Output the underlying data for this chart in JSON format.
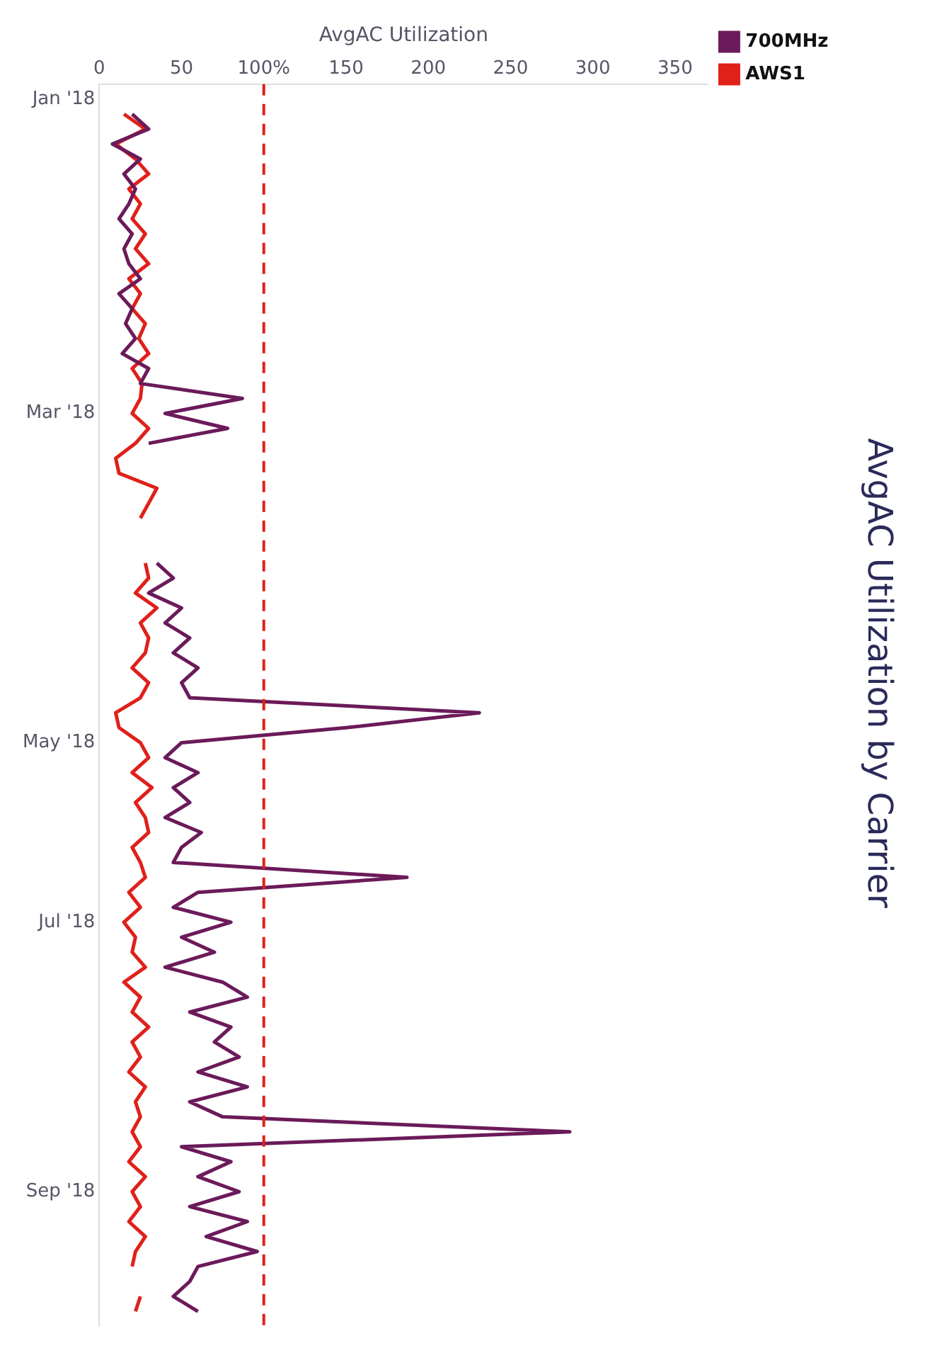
{
  "chart_data": {
    "type": "line",
    "title": "AvgAC Utilization by Carrier",
    "xlabel": "AvgAC Utilization",
    "categories": [
      null,
      "Jan '18",
      null,
      null,
      null,
      null,
      null,
      null,
      null,
      null,
      null,
      null,
      null,
      null,
      null,
      null,
      null,
      null,
      null,
      null,
      null,
      null,
      "Mar '18",
      null,
      null,
      null,
      null,
      null,
      null,
      null,
      null,
      null,
      null,
      null,
      null,
      null,
      null,
      null,
      null,
      null,
      null,
      null,
      null,
      null,
      "May '18",
      null,
      null,
      null,
      null,
      null,
      null,
      null,
      null,
      null,
      null,
      null,
      "Jul '18",
      null,
      null,
      null,
      null,
      null,
      null,
      null,
      null,
      null,
      null,
      null,
      null,
      null,
      null,
      null,
      null,
      null,
      "Sep '18",
      null,
      null,
      null,
      null,
      null,
      null,
      null,
      null,
      null
    ],
    "series": [
      {
        "name": "700MHz",
        "color": "#6b1a5a",
        "values": [
          null,
          null,
          20,
          30,
          8,
          25,
          15,
          22,
          18,
          12,
          20,
          15,
          18,
          25,
          12,
          20,
          16,
          22,
          14,
          30,
          25,
          87,
          40,
          78,
          30,
          null,
          null,
          null,
          null,
          null,
          null,
          null,
          35,
          45,
          30,
          50,
          40,
          55,
          45,
          60,
          50,
          55,
          231,
          150,
          50,
          40,
          60,
          45,
          55,
          40,
          62,
          50,
          45,
          187,
          60,
          45,
          80,
          50,
          70,
          40,
          75,
          90,
          55,
          80,
          70,
          85,
          60,
          90,
          55,
          75,
          286,
          50,
          80,
          60,
          85,
          55,
          90,
          65,
          96,
          60,
          55,
          45,
          60,
          null
        ]
      },
      {
        "name": "AWS1",
        "color": "#e0201a",
        "values": [
          null,
          null,
          15,
          28,
          10,
          22,
          30,
          18,
          25,
          20,
          28,
          22,
          30,
          18,
          25,
          20,
          28,
          24,
          30,
          20,
          26,
          25,
          20,
          30,
          22,
          10,
          12,
          35,
          30,
          25,
          null,
          null,
          28,
          30,
          22,
          35,
          25,
          30,
          28,
          20,
          30,
          25,
          10,
          12,
          25,
          30,
          20,
          32,
          22,
          28,
          30,
          20,
          25,
          28,
          18,
          25,
          15,
          22,
          20,
          28,
          15,
          25,
          20,
          30,
          20,
          25,
          18,
          28,
          22,
          25,
          20,
          25,
          18,
          28,
          20,
          25,
          18,
          28,
          22,
          20,
          null,
          25,
          22,
          null
        ]
      }
    ],
    "orientation": "horizontal",
    "xlim": [
      0,
      370
    ],
    "xticks": [
      0,
      50,
      {
        "value": 100,
        "label": "100%"
      },
      150,
      200,
      250,
      300,
      350
    ],
    "ref_lines": [
      {
        "axis": "x",
        "value": 100,
        "color": "#e0201a",
        "line_style": "dashed"
      }
    ],
    "legend": "right",
    "grid": false
  }
}
